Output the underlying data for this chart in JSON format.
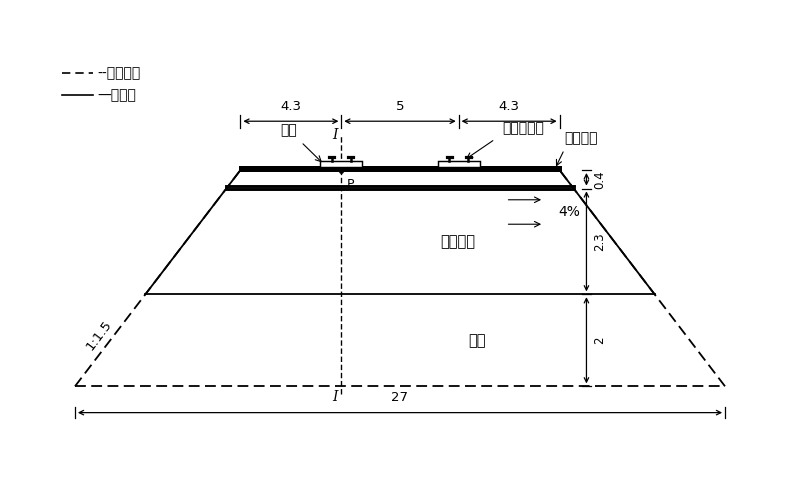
{
  "fig_width": 8.0,
  "fig_height": 5.0,
  "bg_color": "#ffffff",
  "legend_dashed_label": "--自由渗流",
  "legend_solid_label": "—不透水",
  "slope_label": "1:1.5",
  "dim_27": "27",
  "dim_4_3_left": "4.3",
  "dim_5": "5",
  "dim_4_3_right": "4.3",
  "dim_0_4": "0.4",
  "dim_2_3": "2.3",
  "dim_2": "2",
  "label_crack": "裂缝",
  "label_concrete": "混凝土底座",
  "label_surface": "基床表层",
  "label_subgrade": "基床底层",
  "label_foundation": "地基",
  "label_slope_pct": "4%",
  "label_P": "P",
  "label_I": "I",
  "slope_label_text": "1:1.5"
}
